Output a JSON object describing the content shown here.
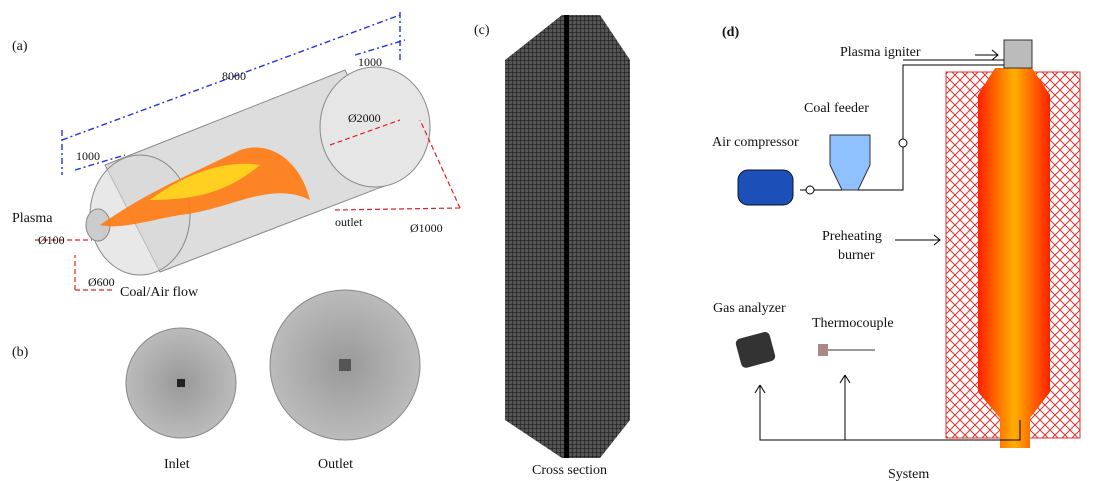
{
  "panel_a": {
    "label": "(a)",
    "length": "8000",
    "inlet_section": "1000",
    "outlet_section": "1000",
    "outer_diameter": "Ø2000",
    "outlet_diameter": "Ø1000",
    "plasma": "Plasma",
    "plasma_diameter": "Ø100",
    "inlet_diameter": "Ø600",
    "coal_air_flow": "Coal/Air flow",
    "outlet": "outlet"
  },
  "panel_b": {
    "label": "(b)",
    "inlet": "Inlet",
    "outlet": "Outlet"
  },
  "panel_c": {
    "label": "(c)",
    "caption": "Cross section"
  },
  "panel_d": {
    "label": "(d)",
    "plasma_igniter": "Plasma igniter",
    "coal_feeder": "Coal feeder",
    "air_compressor": "Air compressor",
    "preheating_burner": [
      "Preheating",
      "burner"
    ],
    "gas_analyzer": "Gas analyzer",
    "thermocouple": "Thermocouple",
    "caption": "System"
  }
}
